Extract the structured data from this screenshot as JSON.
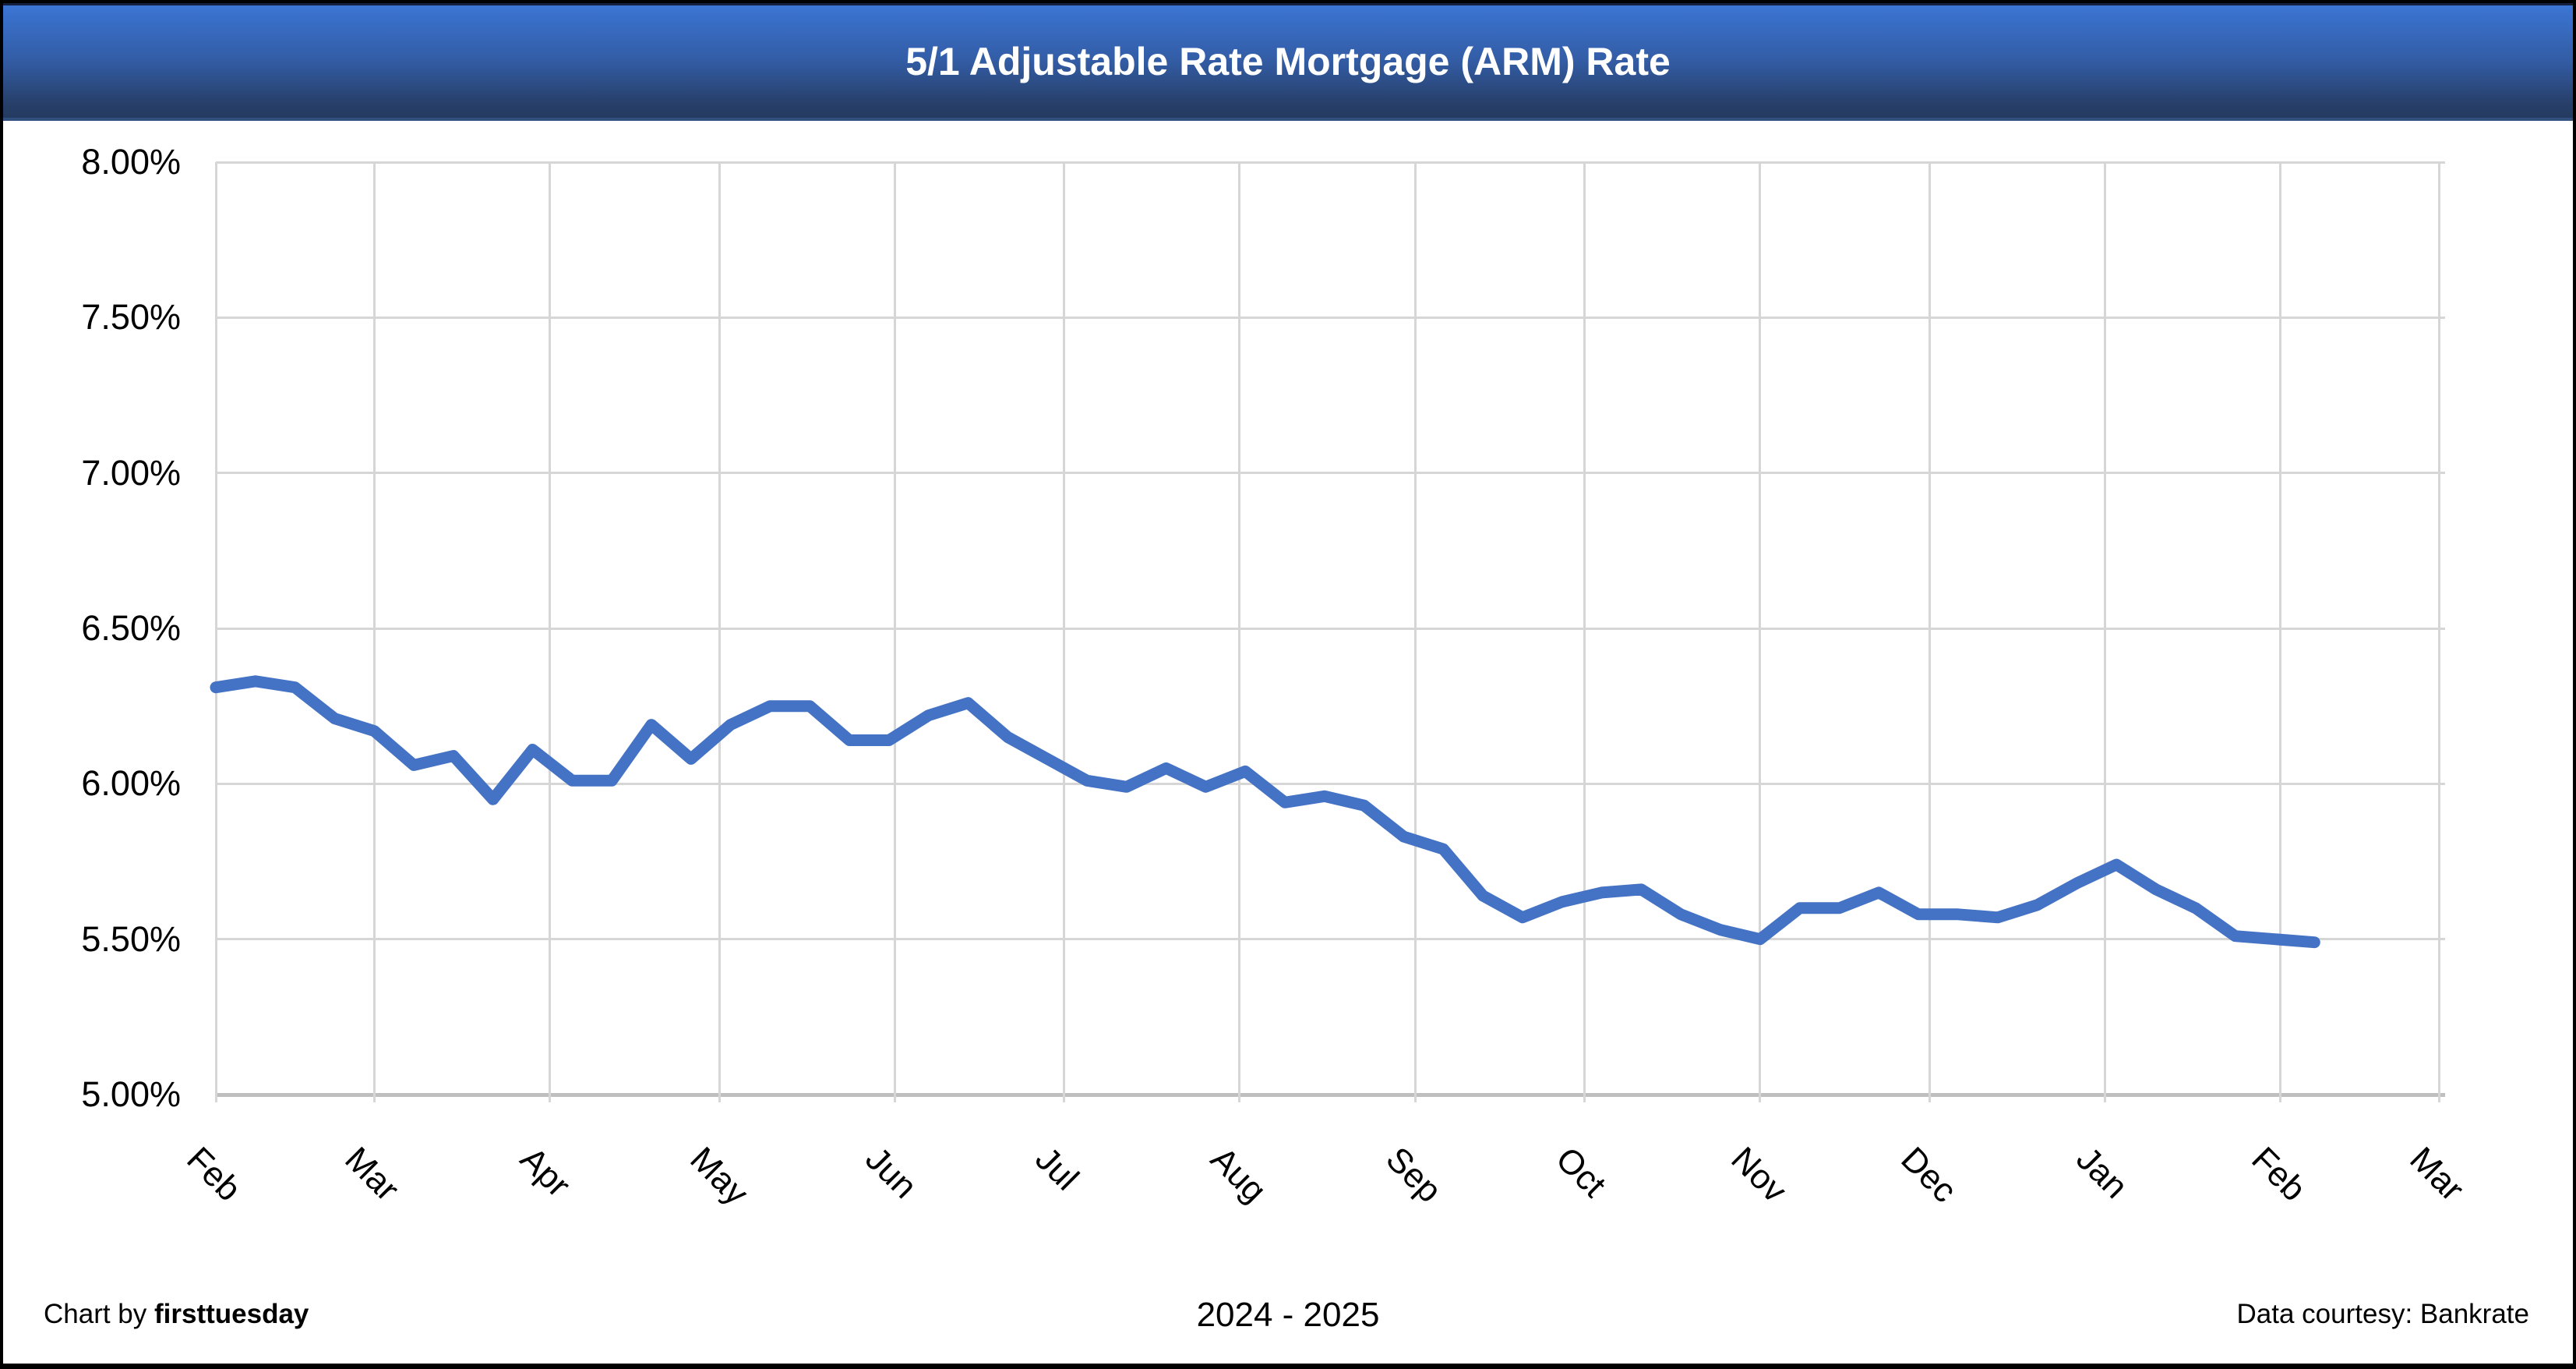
{
  "title": "5/1 Adjustable Rate Mortgage (ARM) Rate",
  "footer": {
    "credit_prefix": "Chart by ",
    "credit_brand": "firsttuesday",
    "period": "2024 - 2025",
    "source": "Data courtesy: Bankrate"
  },
  "chart_data": {
    "type": "line",
    "series_name": "5/1 ARM rate",
    "unit": "percent",
    "frequency": "weekly",
    "period_label": "2024 - 2025",
    "line_color": "#4472C4",
    "grid": true,
    "legend_position": "none",
    "x_tick_labels": [
      "Feb",
      "Mar",
      "Apr",
      "May",
      "Jun",
      "Jul",
      "Aug",
      "Sep",
      "Oct",
      "Nov",
      "Dec",
      "Jan",
      "Feb",
      "Mar"
    ],
    "month_days": [
      28,
      31,
      30,
      31,
      30,
      31,
      31,
      30,
      31,
      30,
      31,
      31,
      28
    ],
    "x_label_rotation_deg": 45,
    "y_axis": {
      "min": 5.0,
      "max": 8.0,
      "step": 0.5,
      "tick_labels": [
        "8.00%",
        "7.50%",
        "7.00%",
        "6.50%",
        "6.00%",
        "5.50%",
        "5.00%"
      ]
    },
    "values": [
      6.31,
      6.33,
      6.31,
      6.21,
      6.17,
      6.06,
      6.09,
      5.95,
      6.11,
      6.01,
      6.01,
      6.19,
      6.08,
      6.19,
      6.25,
      6.25,
      6.14,
      6.14,
      6.22,
      6.26,
      6.15,
      6.08,
      6.01,
      5.99,
      6.05,
      5.99,
      6.04,
      5.94,
      5.96,
      5.93,
      5.83,
      5.79,
      5.64,
      5.57,
      5.62,
      5.65,
      5.66,
      5.58,
      5.53,
      5.5,
      5.6,
      5.6,
      5.65,
      5.58,
      5.58,
      5.57,
      5.61,
      5.68,
      5.74,
      5.66,
      5.6,
      5.51,
      5.5,
      5.49
    ]
  }
}
